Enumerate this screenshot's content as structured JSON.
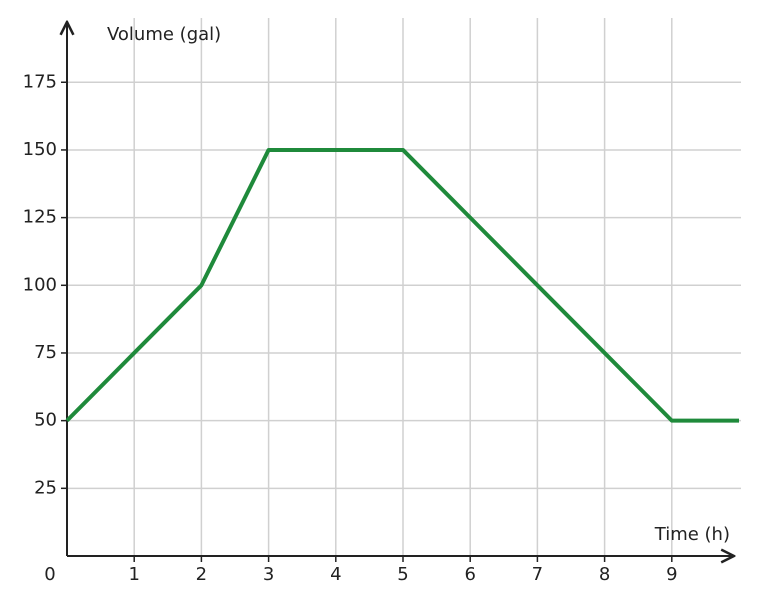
{
  "chart_data": {
    "type": "line",
    "x_label": "Time (h)",
    "y_label": "Volume (gal)",
    "x": [
      0,
      1,
      2,
      3,
      4,
      5,
      6,
      7,
      8,
      9,
      10
    ],
    "series": [
      {
        "color": "#1f8a3b",
        "values": [
          50,
          75,
          100,
          150,
          150,
          150,
          125,
          100,
          75,
          50,
          50
        ]
      }
    ],
    "xlim": [
      0,
      10
    ],
    "xticks": [
      0,
      1,
      2,
      3,
      4,
      5,
      6,
      7,
      8,
      9
    ],
    "ylim": [
      0,
      198
    ],
    "yticks": [
      25,
      50,
      75,
      100,
      125,
      150,
      175
    ],
    "grid": true
  }
}
